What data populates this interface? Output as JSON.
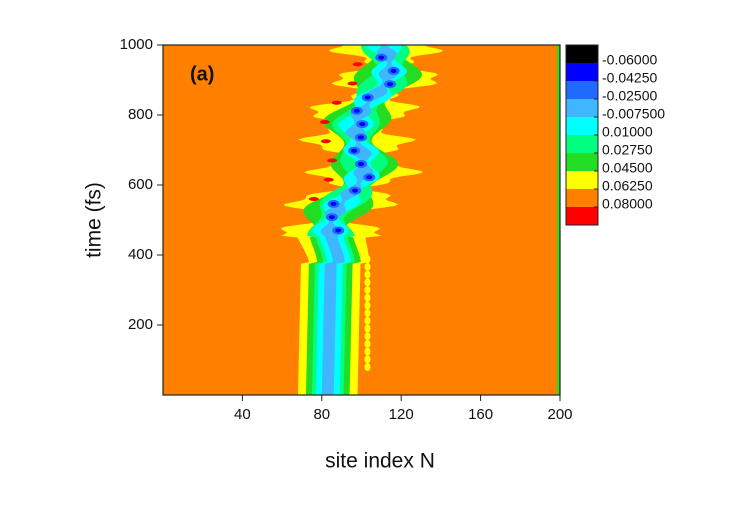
{
  "chart_data": {
    "type": "contour",
    "annotation": "(a)",
    "x_label": "site index N",
    "y_label": "time (fs)",
    "xlim": [
      0,
      200
    ],
    "xticks": [
      40,
      80,
      120,
      160,
      200
    ],
    "ylim": [
      0,
      1000
    ],
    "yticks": [
      200,
      400,
      600,
      800,
      1000
    ],
    "colors": [
      "#000000",
      "#0000ff",
      "#1f6bff",
      "#3fb6ff",
      "#00ffff",
      "#00ff80",
      "#22dd22",
      "#ffff00",
      "#ff8000",
      "#ff0000"
    ],
    "levels": [
      {
        "value": -0.06,
        "label": "-0.06000"
      },
      {
        "value": -0.0425,
        "label": "-0.04250"
      },
      {
        "value": -0.025,
        "label": "-0.02500"
      },
      {
        "value": -0.0075,
        "label": "-0.007500"
      },
      {
        "value": 0.01,
        "label": "0.01000"
      },
      {
        "value": 0.0275,
        "label": "0.02750"
      },
      {
        "value": 0.045,
        "label": "0.04500"
      },
      {
        "value": 0.0625,
        "label": "0.06250"
      },
      {
        "value": 0.08,
        "label": "0.08000"
      }
    ]
  }
}
